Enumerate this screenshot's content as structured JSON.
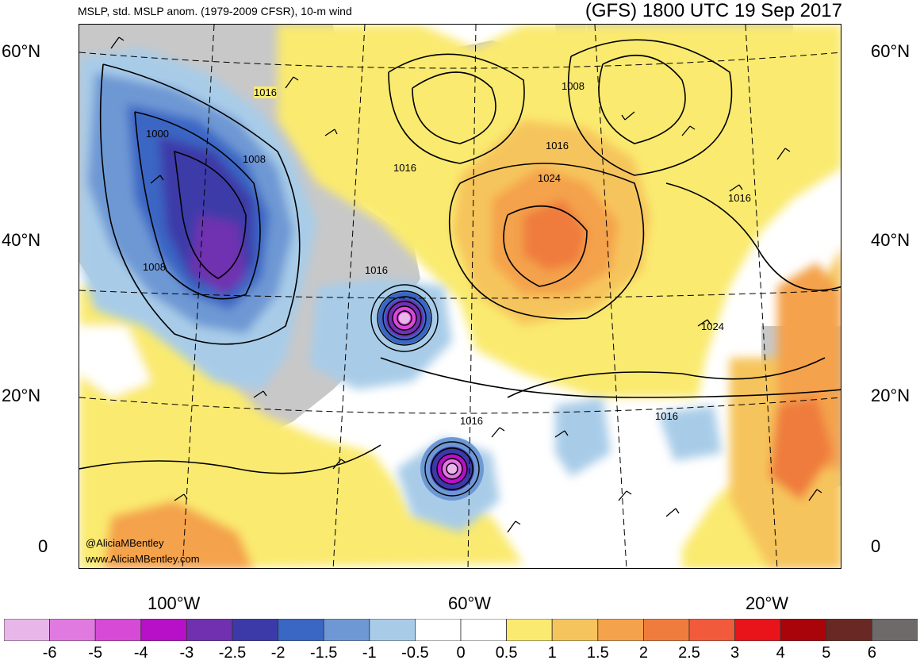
{
  "header": {
    "left_title": "MSLP, std. MSLP anom. (1979-2009 CFSR), 10-m wind",
    "right_title": "(GFS) 1800 UTC 19 Sep 2017"
  },
  "axes": {
    "lat_labels": [
      "60°N",
      "40°N",
      "20°N",
      "0"
    ],
    "lon_labels": [
      "100°W",
      "60°W",
      "20°W"
    ]
  },
  "credits": {
    "handle": "@AliciaMBentley",
    "site": "www.AliciaMBentley.com"
  },
  "isobar_labels": [
    "1016",
    "1000",
    "1008",
    "1008",
    "1016",
    "1016",
    "1008",
    "1016",
    "1024",
    "1016",
    "1024",
    "1016",
    "1016"
  ],
  "colorbar": {
    "colors": [
      "#e8b6e8",
      "#e07ae0",
      "#d64ad6",
      "#b80fc8",
      "#7030b0",
      "#3c3aa8",
      "#3a66c4",
      "#6e98d4",
      "#a8cce8",
      "#ffffff",
      "#ffffff",
      "#faea70",
      "#f6c45c",
      "#f4a24c",
      "#ef7c3c",
      "#f25a3c",
      "#e8141a",
      "#a8040a",
      "#6a2824",
      "#6e6a6a"
    ],
    "labels": [
      "-6",
      "-5",
      "-4",
      "-3",
      "-2.5",
      "-2",
      "-1.5",
      "-1",
      "-0.5",
      "0",
      "0.5",
      "1",
      "1.5",
      "2",
      "2.5",
      "3",
      "4",
      "5",
      "6"
    ]
  }
}
